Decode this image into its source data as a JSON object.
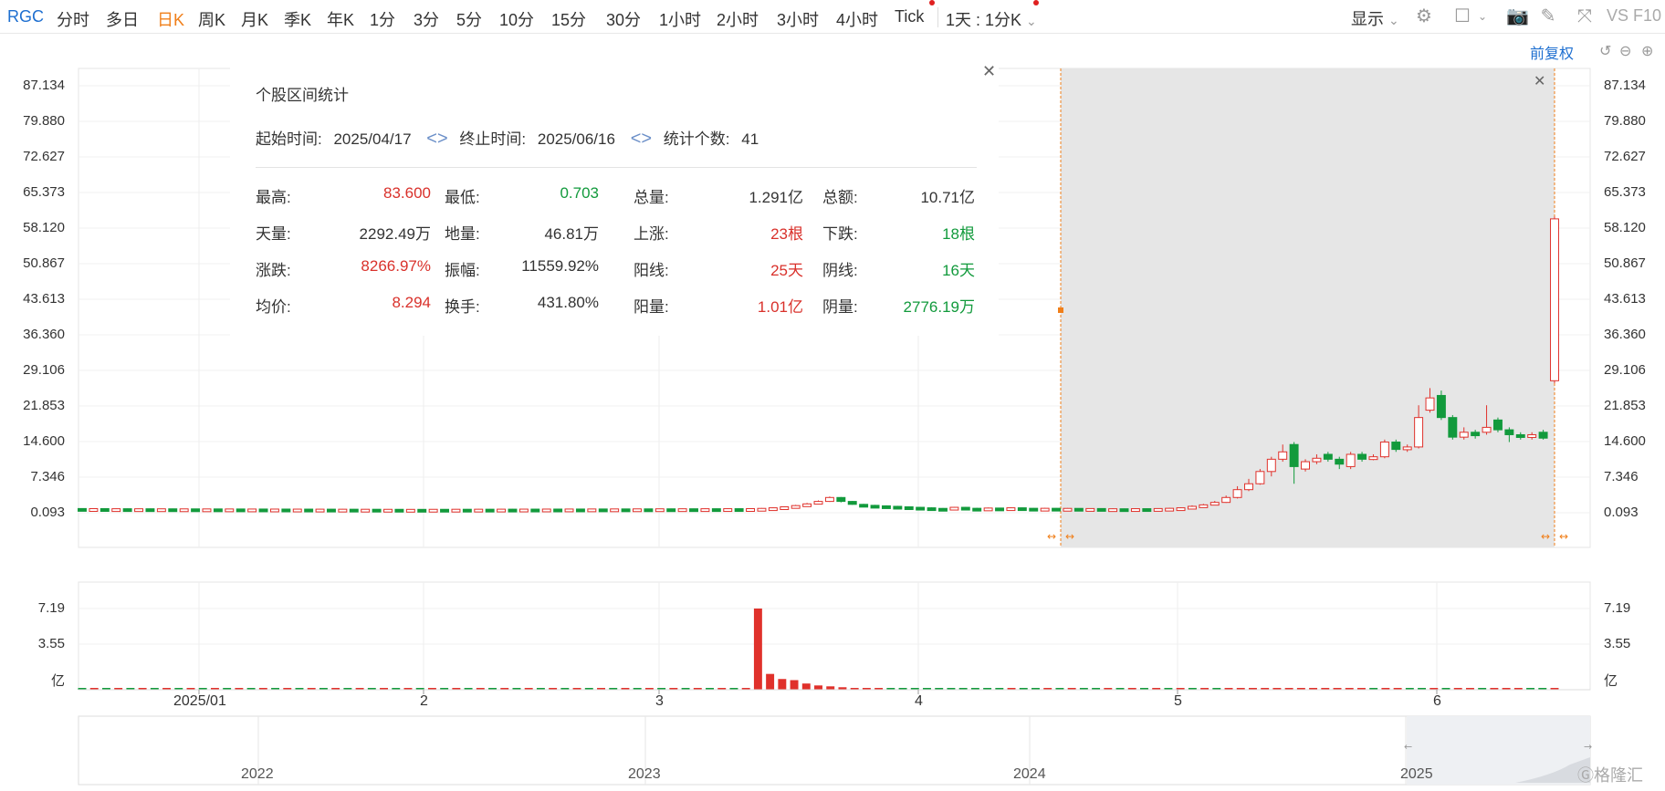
{
  "toolbar": {
    "symbol": "RGC",
    "periods": [
      "分时",
      "多日",
      "日K",
      "周K",
      "月K",
      "季K",
      "年K",
      "1分",
      "3分",
      "5分",
      "10分",
      "15分",
      "30分",
      "1小时",
      "2小时",
      "3小时",
      "4小时",
      "Tick"
    ],
    "active_period": "日K",
    "period_select": "1天 : 1分K",
    "display_label": "显示",
    "vs_label": "VS F10"
  },
  "fuquan_label": "前复权",
  "stats_panel": {
    "title": "个股区间统计",
    "start_label": "起始时间:",
    "start_value": "2025/04/17",
    "end_label": "终止时间:",
    "end_value": "2025/06/16",
    "count_label": "统计个数:",
    "count_value": "41",
    "rows": [
      [
        {
          "l": "最高:",
          "v": "83.600",
          "c": "red"
        },
        {
          "l": "最低:",
          "v": "0.703",
          "c": "green"
        },
        {
          "l": "总量:",
          "v": "1.291亿",
          "c": "dark"
        },
        {
          "l": "总额:",
          "v": "10.71亿",
          "c": "dark"
        }
      ],
      [
        {
          "l": "天量:",
          "v": "2292.49万",
          "c": "dark"
        },
        {
          "l": "地量:",
          "v": "46.81万",
          "c": "dark"
        },
        {
          "l": "上涨:",
          "v": "23根",
          "c": "red"
        },
        {
          "l": "下跌:",
          "v": "18根",
          "c": "green"
        }
      ],
      [
        {
          "l": "涨跌:",
          "v": "8266.97%",
          "c": "red"
        },
        {
          "l": "振幅:",
          "v": "11559.92%",
          "c": "dark"
        },
        {
          "l": "阳线:",
          "v": "25天",
          "c": "red"
        },
        {
          "l": "阴线:",
          "v": "16天",
          "c": "green"
        }
      ],
      [
        {
          "l": "均价:",
          "v": "8.294",
          "c": "red"
        },
        {
          "l": "换手:",
          "v": "431.80%",
          "c": "dark"
        },
        {
          "l": "阳量:",
          "v": "1.01亿",
          "c": "red"
        },
        {
          "l": "阴量:",
          "v": "2776.19万",
          "c": "green"
        }
      ]
    ]
  },
  "chart_data": {
    "type": "candlestick",
    "price_ticks": [
      "87.134",
      "79.880",
      "72.627",
      "65.373",
      "58.120",
      "50.867",
      "43.613",
      "36.360",
      "29.106",
      "21.853",
      "14.600",
      "7.346",
      "0.093"
    ],
    "volume_ticks": [
      "7.19",
      "3.55",
      "亿"
    ],
    "date_ticks": [
      "2025/01",
      "2",
      "3",
      "4",
      "5",
      "6"
    ],
    "navigator_ticks": [
      "2022",
      "2023",
      "2024",
      "2025"
    ],
    "price_range": [
      0.093,
      87.134
    ],
    "volume_range": [
      0,
      7.19
    ],
    "volume_unit": "亿",
    "selection": {
      "start": "2025/04/17",
      "end": "2025/06/16"
    },
    "candles": [
      {
        "o": 0.95,
        "c": 0.9,
        "h": 1.02,
        "l": 0.85
      },
      {
        "o": 0.9,
        "c": 0.93,
        "h": 1.0,
        "l": 0.85
      },
      {
        "o": 0.93,
        "c": 0.88,
        "h": 0.98,
        "l": 0.84
      },
      {
        "o": 0.88,
        "c": 0.91,
        "h": 0.97,
        "l": 0.83
      },
      {
        "o": 0.91,
        "c": 0.87,
        "h": 0.96,
        "l": 0.82
      },
      {
        "o": 0.87,
        "c": 0.9,
        "h": 0.95,
        "l": 0.82
      },
      {
        "o": 0.9,
        "c": 0.86,
        "h": 0.95,
        "l": 0.81
      },
      {
        "o": 0.86,
        "c": 0.89,
        "h": 0.94,
        "l": 0.81
      },
      {
        "o": 0.89,
        "c": 0.85,
        "h": 0.94,
        "l": 0.8
      },
      {
        "o": 0.85,
        "c": 0.88,
        "h": 0.93,
        "l": 0.8
      },
      {
        "o": 0.88,
        "c": 0.84,
        "h": 0.92,
        "l": 0.79
      },
      {
        "o": 0.84,
        "c": 0.87,
        "h": 0.92,
        "l": 0.79
      },
      {
        "o": 0.87,
        "c": 0.83,
        "h": 0.91,
        "l": 0.78
      },
      {
        "o": 0.83,
        "c": 0.86,
        "h": 0.91,
        "l": 0.78
      },
      {
        "o": 0.86,
        "c": 0.82,
        "h": 0.9,
        "l": 0.77
      },
      {
        "o": 0.82,
        "c": 0.85,
        "h": 0.9,
        "l": 0.77
      },
      {
        "o": 0.85,
        "c": 0.81,
        "h": 0.89,
        "l": 0.76
      },
      {
        "o": 0.81,
        "c": 0.84,
        "h": 0.89,
        "l": 0.76
      },
      {
        "o": 0.84,
        "c": 0.8,
        "h": 0.88,
        "l": 0.75
      },
      {
        "o": 0.8,
        "c": 0.83,
        "h": 0.88,
        "l": 0.75
      },
      {
        "o": 0.83,
        "c": 0.79,
        "h": 0.87,
        "l": 0.74
      },
      {
        "o": 0.79,
        "c": 0.82,
        "h": 0.87,
        "l": 0.74
      },
      {
        "o": 0.82,
        "c": 0.78,
        "h": 0.86,
        "l": 0.73
      },
      {
        "o": 0.78,
        "c": 0.81,
        "h": 0.86,
        "l": 0.73
      },
      {
        "o": 0.81,
        "c": 0.77,
        "h": 0.85,
        "l": 0.72
      },
      {
        "o": 0.77,
        "c": 0.8,
        "h": 0.85,
        "l": 0.72
      },
      {
        "o": 0.8,
        "c": 0.76,
        "h": 0.84,
        "l": 0.71
      },
      {
        "o": 0.76,
        "c": 0.79,
        "h": 0.84,
        "l": 0.71
      },
      {
        "o": 0.79,
        "c": 0.75,
        "h": 0.83,
        "l": 0.7
      },
      {
        "o": 0.75,
        "c": 0.78,
        "h": 0.83,
        "l": 0.7
      },
      {
        "o": 0.78,
        "c": 0.76,
        "h": 0.82,
        "l": 0.71
      },
      {
        "o": 0.76,
        "c": 0.79,
        "h": 0.83,
        "l": 0.72
      },
      {
        "o": 0.79,
        "c": 0.77,
        "h": 0.84,
        "l": 0.72
      },
      {
        "o": 0.77,
        "c": 0.8,
        "h": 0.85,
        "l": 0.73
      },
      {
        "o": 0.8,
        "c": 0.78,
        "h": 0.85,
        "l": 0.73
      },
      {
        "o": 0.78,
        "c": 0.81,
        "h": 0.86,
        "l": 0.74
      },
      {
        "o": 0.81,
        "c": 0.79,
        "h": 0.86,
        "l": 0.74
      },
      {
        "o": 0.79,
        "c": 0.82,
        "h": 0.87,
        "l": 0.75
      },
      {
        "o": 0.82,
        "c": 0.8,
        "h": 0.87,
        "l": 0.75
      },
      {
        "o": 0.8,
        "c": 0.83,
        "h": 0.88,
        "l": 0.76
      },
      {
        "o": 0.83,
        "c": 0.81,
        "h": 0.88,
        "l": 0.76
      },
      {
        "o": 0.81,
        "c": 0.84,
        "h": 0.89,
        "l": 0.77
      },
      {
        "o": 0.84,
        "c": 0.82,
        "h": 0.89,
        "l": 0.77
      },
      {
        "o": 0.82,
        "c": 0.85,
        "h": 0.9,
        "l": 0.78
      },
      {
        "o": 0.85,
        "c": 0.83,
        "h": 0.9,
        "l": 0.78
      },
      {
        "o": 0.83,
        "c": 0.86,
        "h": 0.91,
        "l": 0.79
      },
      {
        "o": 0.86,
        "c": 0.84,
        "h": 0.91,
        "l": 0.79
      },
      {
        "o": 0.84,
        "c": 0.87,
        "h": 0.92,
        "l": 0.8
      },
      {
        "o": 0.87,
        "c": 0.85,
        "h": 0.92,
        "l": 0.8
      },
      {
        "o": 0.85,
        "c": 0.88,
        "h": 0.93,
        "l": 0.81
      },
      {
        "o": 0.88,
        "c": 0.86,
        "h": 0.93,
        "l": 0.81
      },
      {
        "o": 0.86,
        "c": 0.89,
        "h": 0.94,
        "l": 0.82
      },
      {
        "o": 0.89,
        "c": 0.87,
        "h": 0.94,
        "l": 0.82
      },
      {
        "o": 0.87,
        "c": 0.9,
        "h": 0.95,
        "l": 0.83
      },
      {
        "o": 0.9,
        "c": 0.88,
        "h": 0.95,
        "l": 0.83
      },
      {
        "o": 0.88,
        "c": 0.91,
        "h": 0.96,
        "l": 0.84
      },
      {
        "o": 0.91,
        "c": 0.89,
        "h": 0.96,
        "l": 0.84
      },
      {
        "o": 0.89,
        "c": 0.92,
        "h": 0.97,
        "l": 0.85
      },
      {
        "o": 0.92,
        "c": 0.9,
        "h": 0.97,
        "l": 0.85
      },
      {
        "o": 0.9,
        "c": 0.93,
        "h": 0.98,
        "l": 0.86
      },
      {
        "o": 0.93,
        "c": 0.98,
        "h": 1.05,
        "l": 0.88
      },
      {
        "o": 0.98,
        "c": 1.1,
        "h": 1.18,
        "l": 0.95
      },
      {
        "o": 1.1,
        "c": 1.3,
        "h": 1.4,
        "l": 1.05
      },
      {
        "o": 1.3,
        "c": 1.55,
        "h": 1.7,
        "l": 1.25
      },
      {
        "o": 1.55,
        "c": 1.9,
        "h": 2.1,
        "l": 1.5
      },
      {
        "o": 1.9,
        "c": 2.4,
        "h": 2.6,
        "l": 1.85
      },
      {
        "o": 2.4,
        "c": 3.2,
        "h": 3.4,
        "l": 2.3
      },
      {
        "o": 3.2,
        "c": 2.4,
        "h": 3.3,
        "l": 2.2
      },
      {
        "o": 2.4,
        "c": 1.8,
        "h": 2.5,
        "l": 1.7
      },
      {
        "o": 1.8,
        "c": 1.6,
        "h": 1.9,
        "l": 1.5
      },
      {
        "o": 1.6,
        "c": 1.5,
        "h": 1.7,
        "l": 1.4
      },
      {
        "o": 1.5,
        "c": 1.4,
        "h": 1.6,
        "l": 1.3
      },
      {
        "o": 1.4,
        "c": 1.3,
        "h": 1.5,
        "l": 1.2
      },
      {
        "o": 1.3,
        "c": 1.2,
        "h": 1.4,
        "l": 1.1
      },
      {
        "o": 1.2,
        "c": 1.1,
        "h": 1.3,
        "l": 1.0
      },
      {
        "o": 1.1,
        "c": 0.98,
        "h": 1.2,
        "l": 0.9
      },
      {
        "o": 0.98,
        "c": 0.9,
        "h": 1.05,
        "l": 0.8
      },
      {
        "o": 0.9,
        "c": 1.2,
        "h": 1.3,
        "l": 0.85
      },
      {
        "o": 1.2,
        "c": 1.0,
        "h": 1.3,
        "l": 0.95
      },
      {
        "o": 1.0,
        "c": 0.95,
        "h": 1.1,
        "l": 0.9
      },
      {
        "o": 0.95,
        "c": 1.05,
        "h": 1.15,
        "l": 0.9
      },
      {
        "o": 1.05,
        "c": 0.95,
        "h": 1.1,
        "l": 0.9
      },
      {
        "o": 0.95,
        "c": 1.1,
        "h": 1.2,
        "l": 0.9
      },
      {
        "o": 1.1,
        "c": 1.0,
        "h": 1.15,
        "l": 0.95
      },
      {
        "o": 1.0,
        "c": 0.92,
        "h": 1.05,
        "l": 0.85
      },
      {
        "o": 0.92,
        "c": 1.0,
        "h": 1.08,
        "l": 0.88
      },
      {
        "o": 1.0,
        "c": 0.9,
        "h": 1.05,
        "l": 0.85
      },
      {
        "o": 0.9,
        "c": 0.98,
        "h": 1.05,
        "l": 0.85
      },
      {
        "o": 0.98,
        "c": 0.88,
        "h": 1.02,
        "l": 0.8
      },
      {
        "o": 0.88,
        "c": 0.95,
        "h": 1.02,
        "l": 0.82
      },
      {
        "o": 0.95,
        "c": 0.85,
        "h": 1.0,
        "l": 0.8
      },
      {
        "o": 0.85,
        "c": 0.9,
        "h": 0.98,
        "l": 0.8
      },
      {
        "o": 0.9,
        "c": 0.85,
        "h": 0.95,
        "l": 0.78
      },
      {
        "o": 0.85,
        "c": 0.92,
        "h": 1.0,
        "l": 0.8
      },
      {
        "o": 0.92,
        "c": 0.88,
        "h": 0.98,
        "l": 0.82
      },
      {
        "o": 0.88,
        "c": 0.95,
        "h": 1.02,
        "l": 0.84
      },
      {
        "o": 0.95,
        "c": 1.0,
        "h": 1.1,
        "l": 0.9
      },
      {
        "o": 1.0,
        "c": 1.1,
        "h": 1.2,
        "l": 0.95
      },
      {
        "o": 1.1,
        "c": 1.4,
        "h": 1.6,
        "l": 1.05
      },
      {
        "o": 1.4,
        "c": 1.7,
        "h": 1.9,
        "l": 1.35
      },
      {
        "o": 1.7,
        "c": 2.2,
        "h": 2.5,
        "l": 1.6
      },
      {
        "o": 2.2,
        "c": 3.2,
        "h": 3.6,
        "l": 2.1
      },
      {
        "o": 3.2,
        "c": 4.8,
        "h": 5.5,
        "l": 3.0
      },
      {
        "o": 4.8,
        "c": 6.0,
        "h": 7.0,
        "l": 4.5
      },
      {
        "o": 6.0,
        "c": 8.5,
        "h": 9.0,
        "l": 5.8
      },
      {
        "o": 8.5,
        "c": 11.0,
        "h": 11.5,
        "l": 7.5
      },
      {
        "o": 11.0,
        "c": 12.5,
        "h": 14.0,
        "l": 10.5
      },
      {
        "o": 14.0,
        "c": 9.5,
        "h": 14.5,
        "l": 6.0
      },
      {
        "o": 9.0,
        "c": 10.5,
        "h": 11.0,
        "l": 8.5
      },
      {
        "o": 10.5,
        "c": 11.2,
        "h": 12.0,
        "l": 10.0
      },
      {
        "o": 12.0,
        "c": 11.0,
        "h": 12.5,
        "l": 10.5
      },
      {
        "o": 11.0,
        "c": 10.0,
        "h": 11.5,
        "l": 9.0
      },
      {
        "o": 9.5,
        "c": 12.0,
        "h": 12.5,
        "l": 9.0
      },
      {
        "o": 12.0,
        "c": 11.0,
        "h": 12.5,
        "l": 10.5
      },
      {
        "o": 11.0,
        "c": 11.5,
        "h": 12.0,
        "l": 10.8
      },
      {
        "o": 11.5,
        "c": 14.5,
        "h": 15.0,
        "l": 11.2
      },
      {
        "o": 14.5,
        "c": 13.0,
        "h": 15.0,
        "l": 12.5
      },
      {
        "o": 13.0,
        "c": 13.5,
        "h": 14.0,
        "l": 12.5
      },
      {
        "o": 13.5,
        "c": 19.5,
        "h": 22.0,
        "l": 13.2
      },
      {
        "o": 21.0,
        "c": 23.5,
        "h": 25.5,
        "l": 20.5
      },
      {
        "o": 24.0,
        "c": 19.5,
        "h": 25.0,
        "l": 19.0
      },
      {
        "o": 19.5,
        "c": 15.5,
        "h": 20.0,
        "l": 15.0
      },
      {
        "o": 15.5,
        "c": 16.5,
        "h": 17.5,
        "l": 15.0
      },
      {
        "o": 16.5,
        "c": 15.8,
        "h": 17.0,
        "l": 15.2
      },
      {
        "o": 16.5,
        "c": 17.5,
        "h": 22.0,
        "l": 16.0
      },
      {
        "o": 19.0,
        "c": 17.0,
        "h": 19.5,
        "l": 16.5
      },
      {
        "o": 17.0,
        "c": 16.0,
        "h": 17.5,
        "l": 14.5
      },
      {
        "o": 16.0,
        "c": 15.5,
        "h": 16.5,
        "l": 15.0
      },
      {
        "o": 15.5,
        "c": 16.0,
        "h": 16.5,
        "l": 15.0
      },
      {
        "o": 16.5,
        "c": 15.3,
        "h": 17.0,
        "l": 15.0
      },
      {
        "o": 27.0,
        "c": 60.0,
        "h": 60.5,
        "l": 26.5
      }
    ],
    "volumes": [
      0.03,
      0.03,
      0.03,
      0.03,
      0.03,
      0.03,
      0.03,
      0.03,
      0.03,
      0.03,
      0.03,
      0.03,
      0.03,
      0.03,
      0.03,
      0.03,
      0.03,
      0.03,
      0.03,
      0.03,
      0.03,
      0.03,
      0.03,
      0.03,
      0.03,
      0.03,
      0.03,
      0.03,
      0.03,
      0.03,
      0.03,
      0.03,
      0.03,
      0.03,
      0.03,
      0.03,
      0.03,
      0.03,
      0.03,
      0.03,
      0.03,
      0.03,
      0.03,
      0.03,
      0.03,
      0.03,
      0.03,
      0.03,
      0.03,
      0.03,
      0.03,
      0.03,
      0.03,
      0.03,
      0.03,
      0.03,
      7.19,
      1.4,
      0.95,
      0.85,
      0.55,
      0.38,
      0.3,
      0.22,
      0.15,
      0.1,
      0.08,
      0.06,
      0.06,
      0.05,
      0.05,
      0.04,
      0.04,
      0.04,
      0.04,
      0.04,
      0.04,
      0.04,
      0.04,
      0.04,
      0.04,
      0.04,
      0.04,
      0.04,
      0.04,
      0.04,
      0.04,
      0.04,
      0.04,
      0.04,
      0.04,
      0.04,
      0.05,
      0.05,
      0.05,
      0.06,
      0.06,
      0.07,
      0.07,
      0.08,
      0.08,
      0.08,
      0.07,
      0.08,
      0.07,
      0.06,
      0.06,
      0.06,
      0.06,
      0.06,
      0.06,
      0.06,
      0.06,
      0.06,
      0.06,
      0.06,
      0.06,
      0.06,
      0.06,
      0.06,
      0.06,
      0.06,
      0.12
    ]
  }
}
